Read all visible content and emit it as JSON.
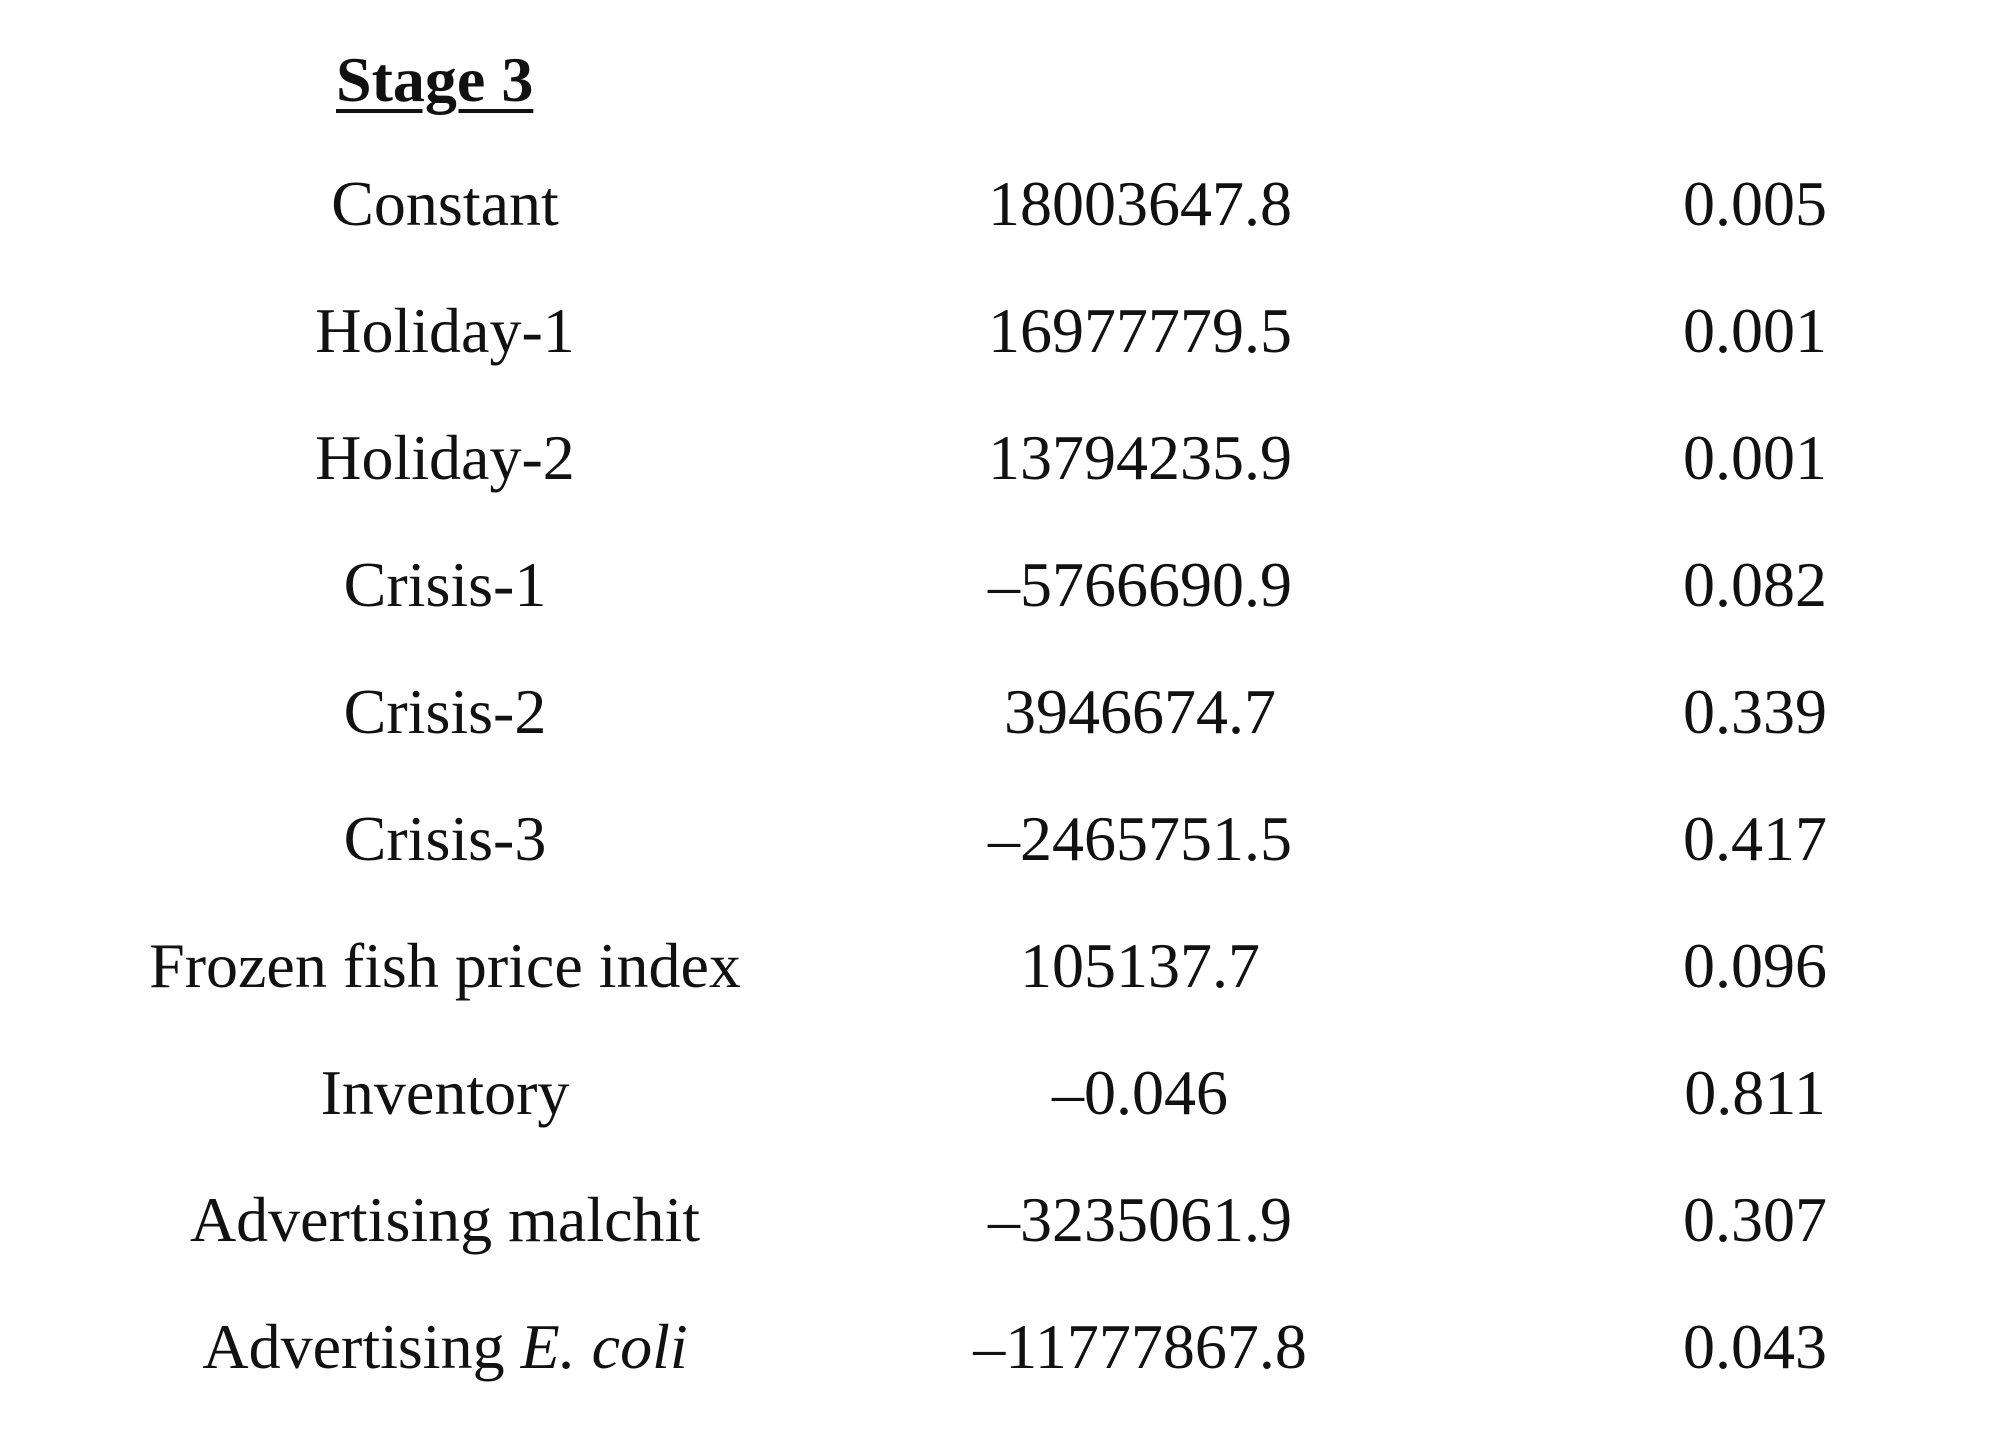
{
  "section_title": "Stage 3",
  "rows": [
    {
      "variable": "Constant",
      "coefficient": "18003647.8",
      "p_value": "0.005"
    },
    {
      "variable": "Holiday-1",
      "coefficient": "16977779.5",
      "p_value": "0.001"
    },
    {
      "variable": "Holiday-2",
      "coefficient": "13794235.9",
      "p_value": "0.001"
    },
    {
      "variable": "Crisis-1",
      "coefficient": "–5766690.9",
      "p_value": "0.082"
    },
    {
      "variable": "Crisis-2",
      "coefficient": "3946674.7",
      "p_value": "0.339"
    },
    {
      "variable": "Crisis-3",
      "coefficient": "–2465751.5",
      "p_value": "0.417"
    },
    {
      "variable": "Frozen fish price index",
      "coefficient": "105137.7",
      "p_value": "0.096"
    },
    {
      "variable": "Inventory",
      "coefficient": "–0.046",
      "p_value": "0.811"
    },
    {
      "variable": "Advertising malchit",
      "coefficient": "–3235061.9",
      "p_value": "0.307"
    },
    {
      "variable_prefix": "Advertising",
      "variable_italic": "E. coli",
      "coefficient": "–11777867.8",
      "p_value": "0.043"
    }
  ]
}
